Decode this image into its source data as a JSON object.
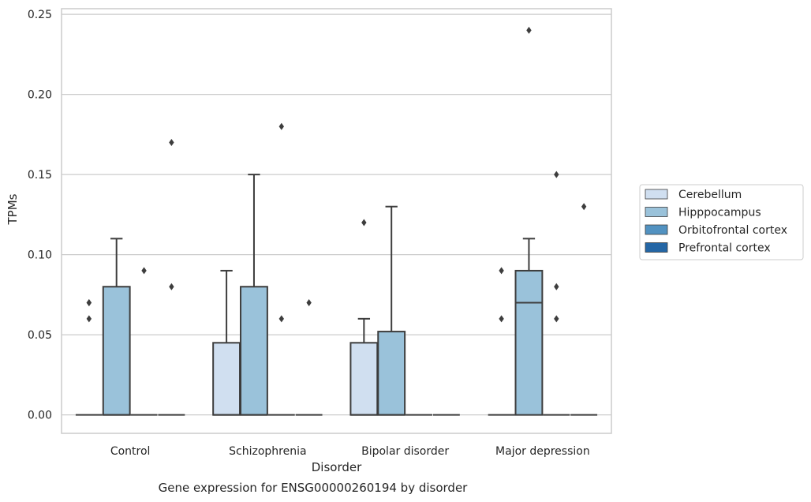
{
  "caption": "Gene expression for ENSG00000260194 by disorder",
  "chart_data": {
    "type": "box",
    "xlabel": "Disorder",
    "ylabel": "TPMs",
    "ylim": [
      -0.0115,
      0.2535
    ],
    "yticks": [
      0.0,
      0.05,
      0.1,
      0.15,
      0.2,
      0.25
    ],
    "ytick_labels": [
      "0.00",
      "0.05",
      "0.10",
      "0.15",
      "0.20",
      "0.25"
    ],
    "grid": "horizontal",
    "legend_placement": "right, outside plot",
    "categories": [
      "Control",
      "Schizophrenia",
      "Bipolar disorder",
      "Major depression"
    ],
    "series": [
      {
        "name": "Cerebellum",
        "color": "#d0dff0",
        "boxes": [
          {
            "q1": 0.0,
            "median": 0.0,
            "q3": 0.0,
            "whisker_low": 0.0,
            "whisker_high": 0.0,
            "outliers": [
              0.06,
              0.07,
              0.07
            ]
          },
          {
            "q1": 0.0,
            "median": 0.0,
            "q3": 0.045,
            "whisker_low": 0.0,
            "whisker_high": 0.09,
            "outliers": []
          },
          {
            "q1": 0.0,
            "median": 0.0,
            "q3": 0.045,
            "whisker_low": 0.0,
            "whisker_high": 0.06,
            "outliers": [
              0.12
            ]
          },
          {
            "q1": 0.0,
            "median": 0.0,
            "q3": 0.0,
            "whisker_low": 0.0,
            "whisker_high": 0.0,
            "outliers": [
              0.06,
              0.09
            ]
          }
        ]
      },
      {
        "name": "Hipppocampus",
        "color": "#9ac2da",
        "boxes": [
          {
            "q1": 0.0,
            "median": 0.0,
            "q3": 0.08,
            "whisker_low": 0.0,
            "whisker_high": 0.11,
            "outliers": []
          },
          {
            "q1": 0.0,
            "median": 0.0,
            "q3": 0.08,
            "whisker_low": 0.0,
            "whisker_high": 0.15,
            "outliers": []
          },
          {
            "q1": 0.0,
            "median": 0.0,
            "q3": 0.052,
            "whisker_low": 0.0,
            "whisker_high": 0.13,
            "outliers": []
          },
          {
            "q1": 0.0,
            "median": 0.07,
            "q3": 0.09,
            "whisker_low": 0.0,
            "whisker_high": 0.11,
            "outliers": [
              0.24
            ]
          }
        ]
      },
      {
        "name": "Orbitofrontal cortex",
        "color": "#5292c1",
        "boxes": [
          {
            "q1": 0.0,
            "median": 0.0,
            "q3": 0.0,
            "whisker_low": 0.0,
            "whisker_high": 0.0,
            "outliers": [
              0.09
            ]
          },
          {
            "q1": 0.0,
            "median": 0.0,
            "q3": 0.0,
            "whisker_low": 0.0,
            "whisker_high": 0.0,
            "outliers": [
              0.06,
              0.18
            ]
          },
          {
            "q1": 0.0,
            "median": 0.0,
            "q3": 0.0,
            "whisker_low": 0.0,
            "whisker_high": 0.0,
            "outliers": []
          },
          {
            "q1": 0.0,
            "median": 0.0,
            "q3": 0.0,
            "whisker_low": 0.0,
            "whisker_high": 0.0,
            "outliers": [
              0.06,
              0.08,
              0.15
            ]
          }
        ]
      },
      {
        "name": "Prefrontal cortex",
        "color": "#2466a5",
        "boxes": [
          {
            "q1": 0.0,
            "median": 0.0,
            "q3": 0.0,
            "whisker_low": 0.0,
            "whisker_high": 0.0,
            "outliers": [
              0.08,
              0.17
            ]
          },
          {
            "q1": 0.0,
            "median": 0.0,
            "q3": 0.0,
            "whisker_low": 0.0,
            "whisker_high": 0.0,
            "outliers": [
              0.07
            ]
          },
          {
            "q1": 0.0,
            "median": 0.0,
            "q3": 0.0,
            "whisker_low": 0.0,
            "whisker_high": 0.0,
            "outliers": []
          },
          {
            "q1": 0.0,
            "median": 0.0,
            "q3": 0.0,
            "whisker_low": 0.0,
            "whisker_high": 0.0,
            "outliers": [
              0.13
            ]
          }
        ]
      }
    ]
  }
}
